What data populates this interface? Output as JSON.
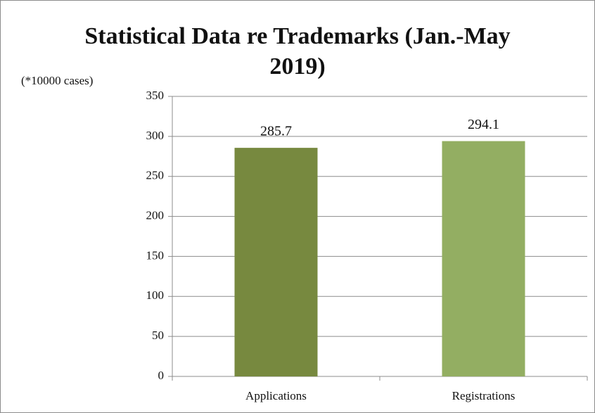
{
  "chart_data": {
    "type": "bar",
    "title": "Statistical Data re Trademarks (Jan.-May 2019)",
    "y_label": "(*10000  cases)",
    "categories": [
      "Applications",
      "Registrations"
    ],
    "values": [
      285.7,
      294.1
    ],
    "colors": [
      "#77893f",
      "#93ae62"
    ],
    "ylim": [
      0,
      350
    ],
    "yticks": [
      0,
      50,
      100,
      150,
      200,
      250,
      300,
      350
    ],
    "grid": true
  }
}
